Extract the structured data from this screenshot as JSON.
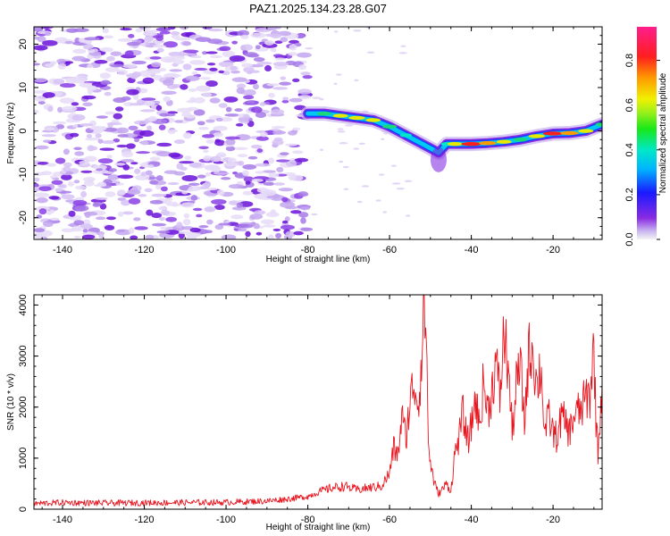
{
  "title": "PAZ1.2025.134.23.28.G07",
  "colors": {
    "snr_line": "#e8141e",
    "scatter_purple": "#7a1fe0",
    "band_core": "#ff1e1e",
    "band_mid": "#18d878",
    "band_outer": "#1a3cff"
  },
  "colorbar": {
    "label": "Normalized spectral amplitude",
    "ticks": [
      "0.0",
      "0.2",
      "0.4",
      "0.6",
      "0.8"
    ],
    "range": [
      0,
      0.95
    ],
    "colormap": "rainbow"
  },
  "chart_data": [
    {
      "type": "heatmap",
      "title": "PAZ1.2025.134.23.28.G07",
      "xlabel": "Height of straight line (km)",
      "ylabel": "Frequency (Hz)",
      "xlim": [
        -147,
        -8
      ],
      "ylim": [
        -25,
        24
      ],
      "x_ticks": [
        "-140",
        "-120",
        "-100",
        "-80",
        "-60",
        "-40",
        "-20"
      ],
      "y_ticks": [
        "20",
        "10",
        "0",
        "-10",
        "-20"
      ],
      "grid": false,
      "noise_region_x": [
        -147,
        -80
      ],
      "signal_ridge": {
        "x": [
          -80,
          -76,
          -72,
          -68,
          -64,
          -60,
          -56,
          -52,
          -48,
          -46,
          -44,
          -40,
          -36,
          -32,
          -28,
          -24,
          -20,
          -16,
          -12,
          -8
        ],
        "freq": [
          4,
          4,
          3.5,
          3,
          2.5,
          1,
          -1,
          -3,
          -5,
          -3,
          -3,
          -3,
          -2.8,
          -2.5,
          -2,
          -1.2,
          -0.6,
          -0.5,
          0,
          1.5
        ],
        "amplitude": [
          0.3,
          0.55,
          0.6,
          0.7,
          0.6,
          0.55,
          0.4,
          0.25,
          0.3,
          0.4,
          0.6,
          0.9,
          0.75,
          0.6,
          0.55,
          0.7,
          0.9,
          0.8,
          0.6,
          0.5
        ]
      }
    },
    {
      "type": "line",
      "xlabel": "Height of straight line (km)",
      "ylabel": "SNR (10 * v/v)",
      "xlim": [
        -147,
        -8
      ],
      "ylim": [
        0,
        4200
      ],
      "x_ticks": [
        "-140",
        "-120",
        "-100",
        "-80",
        "-60",
        "-40",
        "-20"
      ],
      "y_ticks": [
        "0",
        "1000",
        "2000",
        "3000",
        "4000"
      ],
      "grid": false,
      "series": [
        {
          "x": [
            -147,
            -140,
            -130,
            -120,
            -110,
            -100,
            -90,
            -85,
            -80,
            -77,
            -74,
            -71,
            -68,
            -65,
            -62,
            -60,
            -59,
            -58,
            -57,
            -56,
            -55,
            -54,
            -53,
            -52,
            -51.5,
            -51,
            -50.5,
            -50,
            -49,
            -48,
            -47,
            -46,
            -45,
            -44,
            -43,
            -42,
            -41,
            -40,
            -39,
            -38,
            -37,
            -36,
            -35,
            -34,
            -33,
            -32,
            -31,
            -30,
            -29,
            -28,
            -27,
            -26,
            -25,
            -24,
            -23,
            -22,
            -21,
            -20,
            -19,
            -18,
            -17,
            -16,
            -15,
            -14,
            -13,
            -12,
            -11,
            -10,
            -9.5,
            -9,
            -8
          ],
          "y": [
            110,
            130,
            120,
            125,
            130,
            135,
            160,
            200,
            250,
            350,
            420,
            450,
            380,
            420,
            450,
            700,
            1200,
            1050,
            1800,
            1400,
            2100,
            2500,
            2050,
            3100,
            4150,
            3400,
            1300,
            900,
            500,
            300,
            400,
            500,
            350,
            1100,
            1400,
            1900,
            1300,
            1600,
            2200,
            1600,
            2500,
            1900,
            2300,
            2900,
            2200,
            3450,
            2800,
            1500,
            2400,
            2800,
            1700,
            3000,
            3200,
            2400,
            2800,
            1500,
            1800,
            1500,
            1400,
            1800,
            1700,
            1500,
            1800,
            1900,
            1950,
            2200,
            2200,
            3200,
            1800,
            1100,
            2500
          ]
        }
      ]
    }
  ]
}
